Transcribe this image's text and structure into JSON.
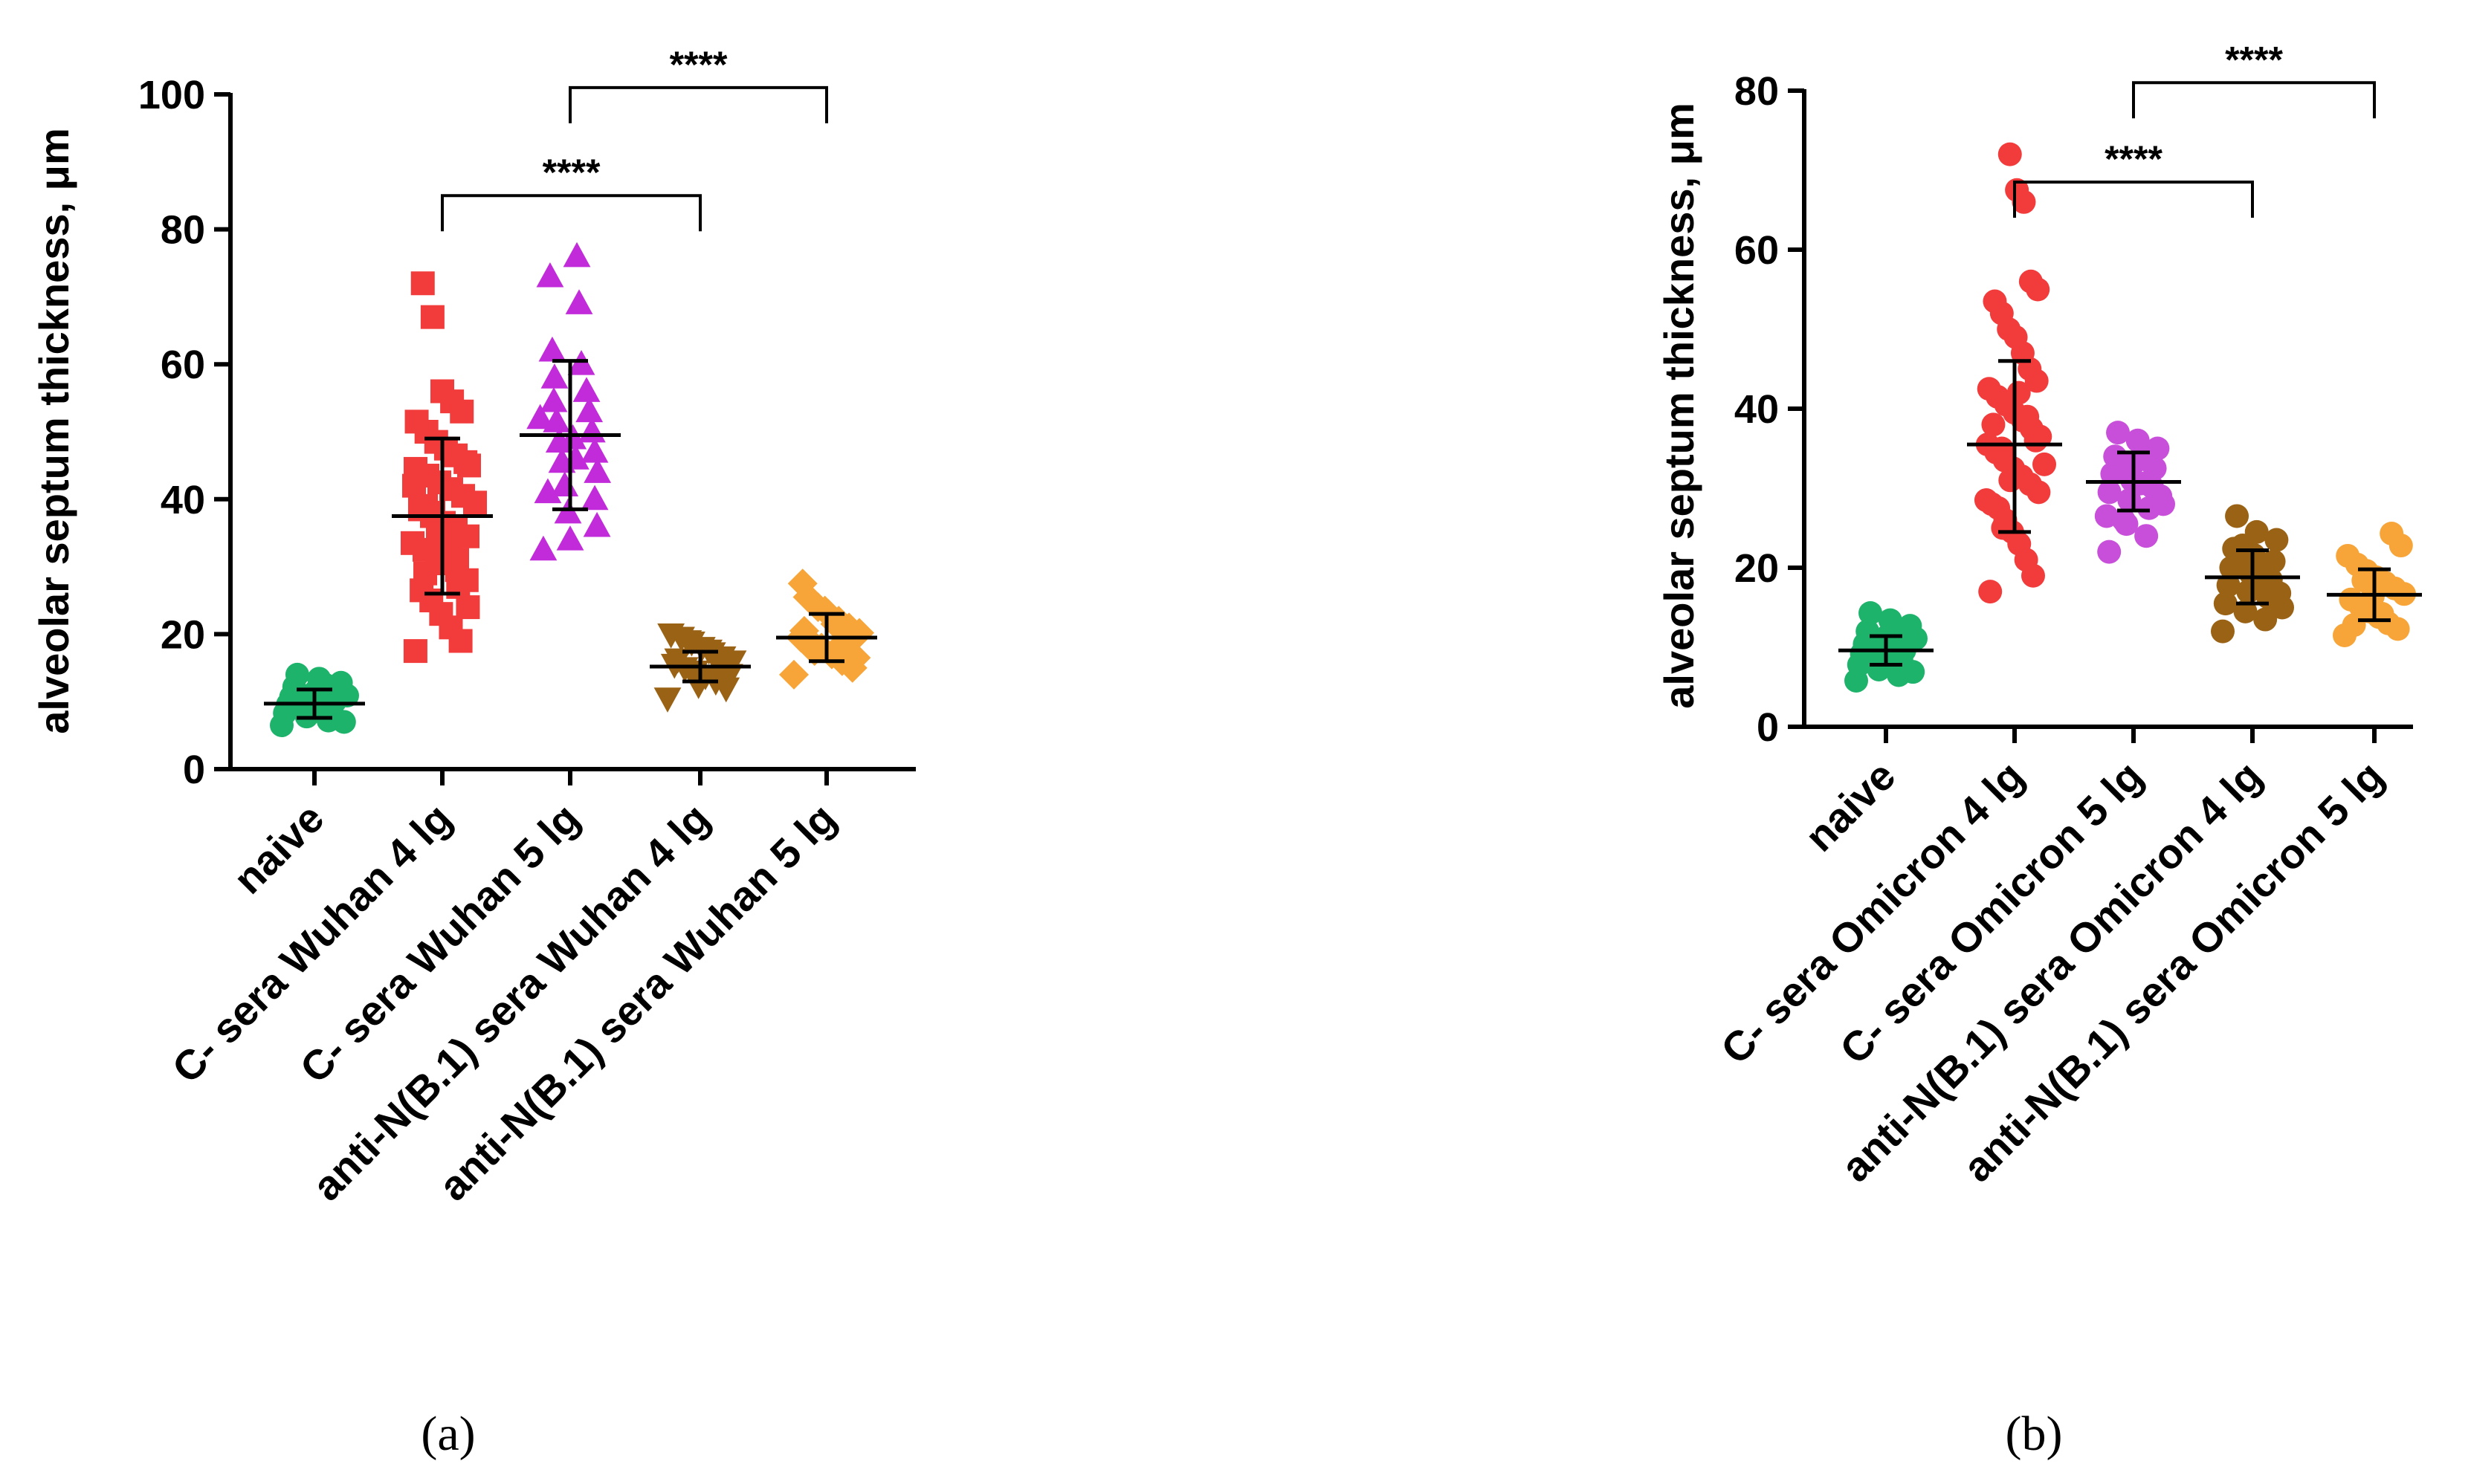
{
  "chart_data": [
    {
      "type": "scatter",
      "panel": "(a)",
      "ylabel": "alveolar septum thickness, μm",
      "ylim": [
        0,
        100
      ],
      "yticks": [
        0,
        20,
        40,
        60,
        80,
        100
      ],
      "categories": [
        "naive",
        "C- sera Wuhan 4 lg",
        "C- sera Wuhan 5 lg",
        "anti-N(B.1) sera Wuhan 4 lg",
        "anti-N(B.1) sera Wuhan 5 lg"
      ],
      "series": [
        {
          "name": "naive",
          "color": "#1db36b",
          "marker": "circle",
          "mean": 9.7,
          "sd_low": 7.6,
          "sd_high": 11.8,
          "values": [
            6.5,
            7.2,
            7.8,
            8.3,
            8.8,
            9.2,
            9.6,
            10.0,
            10.3,
            10.7,
            11.1,
            11.6,
            12.2,
            12.8,
            13.4,
            14.0,
            7.0,
            8.6,
            9.4,
            10.9,
            12.5,
            9.9
          ]
        },
        {
          "name": "C- sera Wuhan 4 lg",
          "color": "#f23c3c",
          "marker": "square",
          "mean": 37.5,
          "sd_low": 26.0,
          "sd_high": 49.0,
          "values": [
            17.5,
            19.0,
            21.0,
            23.0,
            25.0,
            26.5,
            28.0,
            29.5,
            30.5,
            31.5,
            32.5,
            33.5,
            34.5,
            35.5,
            36.5,
            37.5,
            38.5,
            39.5,
            40.5,
            41.5,
            42.5,
            43.5,
            44.5,
            45.5,
            46.5,
            47.5,
            48.5,
            50.0,
            51.5,
            53.0,
            54.5,
            56.0,
            67.0,
            72.0,
            24.0,
            27.0,
            33.0,
            36.0,
            39.0,
            42.0,
            45.0,
            31.0,
            35.0,
            38.0,
            29.0
          ]
        },
        {
          "name": "C- sera Wuhan 5 lg",
          "color": "#c12bd9",
          "marker": "triangle",
          "mean": 49.5,
          "sd_low": 38.5,
          "sd_high": 60.5,
          "values": [
            32.5,
            34.0,
            36.0,
            38.0,
            40.0,
            42.0,
            44.0,
            45.5,
            47.0,
            48.5,
            50.0,
            51.5,
            53.0,
            54.5,
            56.0,
            58.0,
            60.0,
            62.0,
            69.0,
            73.0,
            76.0,
            41.0,
            46.0,
            52.0,
            49.0
          ]
        },
        {
          "name": "anti-N(B.1) sera Wuhan 4 lg",
          "color": "#9a6214",
          "marker": "triangle-down",
          "mean": 15.2,
          "sd_low": 13.0,
          "sd_high": 17.4,
          "values": [
            10.5,
            12.0,
            13.0,
            13.8,
            14.5,
            15.0,
            15.5,
            16.0,
            16.6,
            17.2,
            18.0,
            18.8,
            19.5,
            20.0,
            14.0,
            15.8,
            17.6,
            12.5,
            19.0,
            16.3
          ]
        },
        {
          "name": "anti-N(B.1) sera Wuhan 5 lg",
          "color": "#f7a539",
          "marker": "diamond",
          "mean": 19.5,
          "sd_low": 16.0,
          "sd_high": 23.0,
          "values": [
            14.0,
            15.0,
            16.0,
            17.0,
            18.0,
            18.8,
            19.5,
            20.2,
            21.0,
            22.0,
            23.0,
            24.0,
            25.5,
            27.5,
            16.5,
            19.0,
            21.5,
            23.5,
            17.5,
            20.5
          ]
        }
      ],
      "significance": [
        {
          "from": "C- sera Wuhan 4 lg",
          "to": "anti-N(B.1) sera Wuhan 4 lg",
          "label": "****",
          "y": 85
        },
        {
          "from": "C- sera Wuhan 5 lg",
          "to": "anti-N(B.1) sera Wuhan 5 lg",
          "label": "****",
          "y": 101
        }
      ]
    },
    {
      "type": "scatter",
      "panel": "(b)",
      "ylabel": "alveolar septum thickness, μm",
      "ylim": [
        0,
        80
      ],
      "yticks": [
        0,
        20,
        40,
        60,
        80
      ],
      "categories": [
        "naive",
        "C- sera Omicron 4 lg",
        "C- sera Omicron 5 lg",
        "anti-N(B.1) sera Omicron 4 lg",
        "anti-N(B.1) sera Omicron 5 lg"
      ],
      "series": [
        {
          "name": "naive",
          "color": "#1db36b",
          "marker": "circle",
          "mean": 9.6,
          "sd_low": 7.8,
          "sd_high": 11.4,
          "values": [
            5.8,
            6.5,
            7.2,
            7.8,
            8.3,
            8.8,
            9.2,
            9.6,
            10.0,
            10.4,
            10.9,
            11.4,
            12.0,
            12.7,
            13.4,
            14.3,
            6.9,
            8.6,
            9.4,
            11.1,
            12.3,
            10.2
          ]
        },
        {
          "name": "C- sera Omicron 4 lg",
          "color": "#f23c3c",
          "marker": "circle",
          "mean": 35.5,
          "sd_low": 24.5,
          "sd_high": 46.0,
          "values": [
            17.0,
            19.0,
            21.0,
            23.0,
            24.5,
            26.0,
            27.5,
            28.5,
            29.5,
            30.5,
            31.5,
            32.5,
            33.5,
            34.5,
            35.5,
            36.5,
            37.5,
            38.5,
            39.5,
            40.5,
            41.5,
            42.5,
            43.5,
            45.0,
            47.0,
            49.0,
            50.0,
            52.0,
            53.5,
            55.0,
            56.0,
            66.0,
            67.5,
            72.0,
            25.0,
            28.0,
            33.0,
            36.0,
            39.0,
            42.0,
            31.0,
            35.0,
            38.0
          ]
        },
        {
          "name": "C- sera Omicron 5 lg",
          "color": "#c84fd9",
          "marker": "circle",
          "mean": 30.8,
          "sd_low": 27.2,
          "sd_high": 34.5,
          "values": [
            22.0,
            24.0,
            25.5,
            26.5,
            27.5,
            28.5,
            29.5,
            30.2,
            31.0,
            31.8,
            32.5,
            33.3,
            34.0,
            35.0,
            36.0,
            37.0,
            29.0,
            30.6,
            32.2,
            28.0,
            33.8,
            26.0
          ]
        },
        {
          "name": "anti-N(B.1) sera Omicron 4 lg",
          "color": "#9a6214",
          "marker": "circle",
          "mean": 18.8,
          "sd_low": 15.5,
          "sd_high": 22.2,
          "values": [
            12.0,
            13.5,
            14.5,
            15.5,
            16.3,
            17.0,
            17.8,
            18.5,
            19.2,
            20.0,
            20.8,
            21.6,
            22.4,
            23.5,
            24.5,
            26.5,
            16.8,
            18.8,
            21.0,
            15.0,
            19.6,
            22.8
          ]
        },
        {
          "name": "anti-N(B.1) sera Omicron 5 lg",
          "color": "#f7a539",
          "marker": "circle",
          "mean": 16.6,
          "sd_low": 13.4,
          "sd_high": 19.8,
          "values": [
            11.5,
            12.3,
            13.0,
            13.8,
            14.5,
            15.2,
            16.0,
            16.7,
            17.4,
            18.1,
            18.8,
            19.6,
            20.4,
            21.5,
            22.8,
            24.3,
            14.2,
            16.4,
            18.4,
            12.8
          ]
        }
      ],
      "significance": [
        {
          "from": "C- sera Omicron 4 lg",
          "to": "anti-N(B.1) sera Omicron 4 lg",
          "label": "****",
          "y": 68.5
        },
        {
          "from": "C- sera Omicron 5 lg",
          "to": "anti-N(B.1) sera Omicron 5 lg",
          "label": "****",
          "y": 81
        }
      ]
    }
  ]
}
